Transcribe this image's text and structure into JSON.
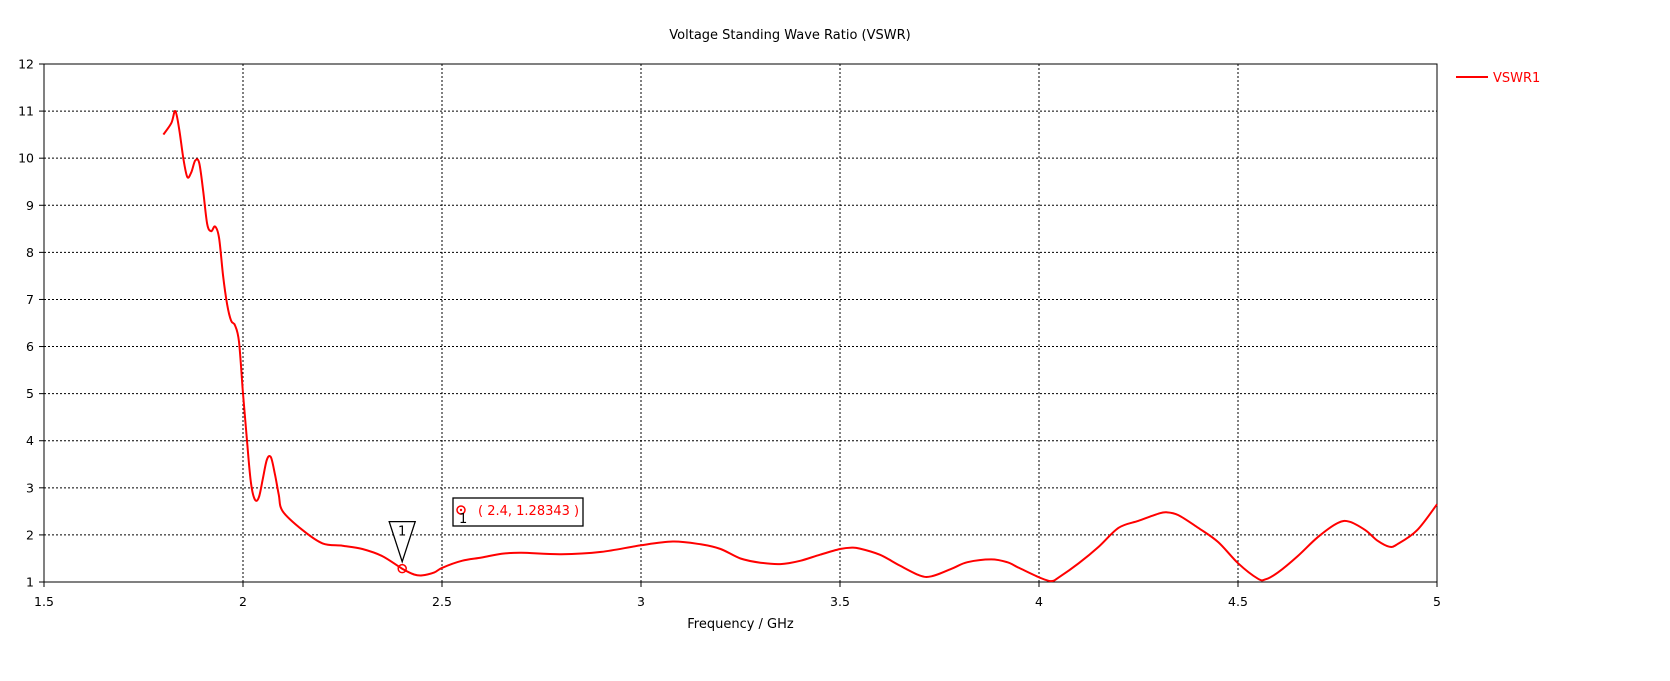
{
  "chart_data": {
    "type": "line",
    "title": "Voltage Standing Wave Ratio (VSWR)",
    "xlabel": "Frequency / GHz",
    "ylabel": "",
    "xlim": [
      1.5,
      5
    ],
    "ylim": [
      1,
      12
    ],
    "x_ticks": [
      1.5,
      2,
      2.5,
      3,
      3.5,
      4,
      4.5,
      5
    ],
    "x_tick_labels": [
      "1.5",
      "2",
      "2.5",
      "3",
      "3.5",
      "4",
      "4.5",
      "5"
    ],
    "y_ticks": [
      1,
      2,
      3,
      4,
      5,
      6,
      7,
      8,
      9,
      10,
      11,
      12
    ],
    "y_tick_labels": [
      "1",
      "2",
      "3",
      "4",
      "5",
      "6",
      "7",
      "8",
      "9",
      "10",
      "11",
      "12"
    ],
    "grid": true,
    "legend_position": "right-top",
    "series": [
      {
        "name": "VSWR1",
        "color": "#ff0000",
        "points": [
          [
            1.8,
            10.5
          ],
          [
            1.82,
            10.75
          ],
          [
            1.83,
            11.0
          ],
          [
            1.84,
            10.6
          ],
          [
            1.85,
            10.0
          ],
          [
            1.86,
            9.6
          ],
          [
            1.87,
            9.7
          ],
          [
            1.88,
            9.95
          ],
          [
            1.89,
            9.9
          ],
          [
            1.9,
            9.3
          ],
          [
            1.91,
            8.6
          ],
          [
            1.92,
            8.45
          ],
          [
            1.93,
            8.55
          ],
          [
            1.94,
            8.3
          ],
          [
            1.95,
            7.5
          ],
          [
            1.96,
            6.9
          ],
          [
            1.97,
            6.55
          ],
          [
            1.98,
            6.45
          ],
          [
            1.99,
            6.1
          ],
          [
            2.0,
            5.0
          ],
          [
            2.01,
            4.0
          ],
          [
            2.02,
            3.1
          ],
          [
            2.03,
            2.75
          ],
          [
            2.04,
            2.8
          ],
          [
            2.05,
            3.2
          ],
          [
            2.06,
            3.6
          ],
          [
            2.07,
            3.65
          ],
          [
            2.08,
            3.3
          ],
          [
            2.09,
            2.85
          ],
          [
            2.1,
            2.5
          ],
          [
            2.15,
            2.1
          ],
          [
            2.2,
            1.82
          ],
          [
            2.25,
            1.77
          ],
          [
            2.3,
            1.7
          ],
          [
            2.35,
            1.55
          ],
          [
            2.4,
            1.28343
          ],
          [
            2.43,
            1.16
          ],
          [
            2.45,
            1.14
          ],
          [
            2.48,
            1.2
          ],
          [
            2.5,
            1.3
          ],
          [
            2.55,
            1.45
          ],
          [
            2.6,
            1.52
          ],
          [
            2.65,
            1.6
          ],
          [
            2.7,
            1.62
          ],
          [
            2.8,
            1.59
          ],
          [
            2.9,
            1.64
          ],
          [
            3.0,
            1.78
          ],
          [
            3.08,
            1.86
          ],
          [
            3.15,
            1.8
          ],
          [
            3.2,
            1.7
          ],
          [
            3.25,
            1.5
          ],
          [
            3.3,
            1.41
          ],
          [
            3.35,
            1.38
          ],
          [
            3.4,
            1.45
          ],
          [
            3.45,
            1.58
          ],
          [
            3.5,
            1.7
          ],
          [
            3.53,
            1.73
          ],
          [
            3.55,
            1.71
          ],
          [
            3.6,
            1.58
          ],
          [
            3.65,
            1.35
          ],
          [
            3.7,
            1.14
          ],
          [
            3.73,
            1.12
          ],
          [
            3.78,
            1.28
          ],
          [
            3.82,
            1.42
          ],
          [
            3.88,
            1.48
          ],
          [
            3.92,
            1.42
          ],
          [
            3.95,
            1.3
          ],
          [
            4.0,
            1.1
          ],
          [
            4.03,
            1.02
          ],
          [
            4.05,
            1.1
          ],
          [
            4.1,
            1.4
          ],
          [
            4.15,
            1.75
          ],
          [
            4.2,
            2.15
          ],
          [
            4.25,
            2.3
          ],
          [
            4.3,
            2.45
          ],
          [
            4.32,
            2.48
          ],
          [
            4.35,
            2.42
          ],
          [
            4.4,
            2.15
          ],
          [
            4.45,
            1.85
          ],
          [
            4.5,
            1.4
          ],
          [
            4.55,
            1.07
          ],
          [
            4.57,
            1.06
          ],
          [
            4.6,
            1.2
          ],
          [
            4.65,
            1.55
          ],
          [
            4.7,
            1.95
          ],
          [
            4.75,
            2.25
          ],
          [
            4.78,
            2.28
          ],
          [
            4.82,
            2.1
          ],
          [
            4.85,
            1.88
          ],
          [
            4.88,
            1.75
          ],
          [
            4.9,
            1.8
          ],
          [
            4.95,
            2.1
          ],
          [
            5.0,
            2.65
          ]
        ]
      }
    ],
    "marker": {
      "id": "1",
      "x": 2.4,
      "y": 1.28343,
      "label": "( 2.4, 1.28343 )",
      "color": "#ff0000"
    }
  }
}
